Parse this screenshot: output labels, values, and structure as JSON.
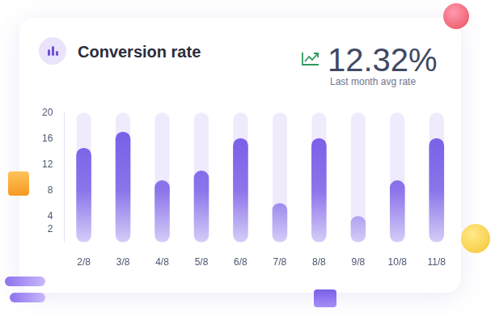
{
  "chart_data": {
    "type": "bar",
    "title": "Conversion rate",
    "summary": {
      "label": "12.32%",
      "caption": "Last month avg rate"
    },
    "categories": [
      "2/8",
      "3/8",
      "4/8",
      "5/8",
      "6/8",
      "7/8",
      "8/8",
      "9/8",
      "10/8",
      "11/8"
    ],
    "values": [
      14.5,
      17,
      9.5,
      11,
      16,
      6,
      16,
      4,
      9.5,
      16
    ],
    "color": "#7357e6",
    "ylim": [
      0,
      20
    ],
    "yticks": [
      2,
      4,
      8,
      12,
      16,
      20
    ],
    "grid": false
  }
}
